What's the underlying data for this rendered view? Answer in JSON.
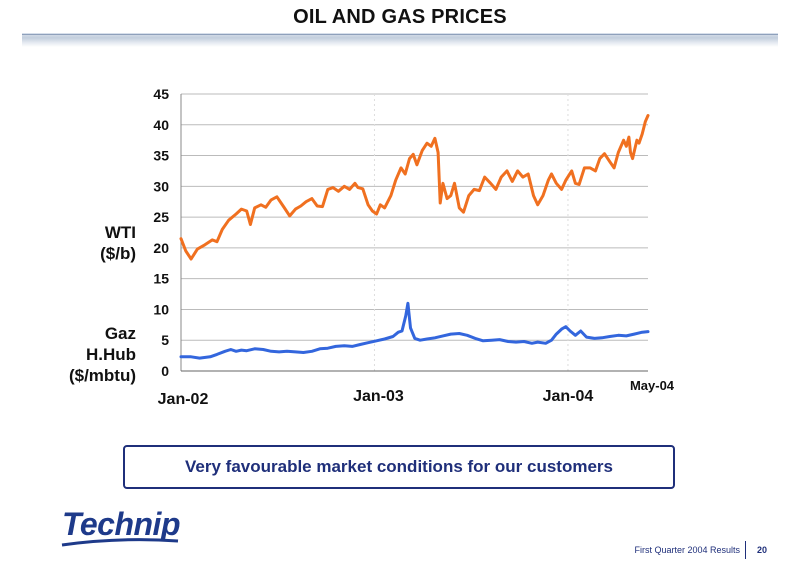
{
  "slide": {
    "title": "OIL AND GAS PRICES",
    "callout": "Very favourable market conditions for our customers",
    "footer": "First Quarter 2004 Results",
    "page_number": "20",
    "logo_text": "Technip"
  },
  "left_labels": {
    "wti_line1": "WTI",
    "wti_line2": "($/b)",
    "gaz_line1": "Gaz",
    "gaz_line2": "H.Hub",
    "gaz_line3": "($/mbtu)"
  },
  "colors": {
    "wti": "#f07020",
    "gas": "#3366dd",
    "grid": "#bbbbbb",
    "accent": "#1f2f7a"
  },
  "chart_data": {
    "type": "line",
    "title": "OIL AND GAS PRICES",
    "xlabel": "",
    "ylabel": "",
    "ylim": [
      0,
      45
    ],
    "yticks": [
      0,
      5,
      10,
      15,
      20,
      25,
      30,
      35,
      40,
      45
    ],
    "xlim": [
      "2002-01",
      "2004-05"
    ],
    "xtick_labels": [
      "Jan-02",
      "Jan-03",
      "Jan-04",
      "May-04"
    ],
    "grid": true,
    "series": [
      {
        "name": "WTI",
        "points": [
          [
            "2002-01-01",
            21.5
          ],
          [
            "2002-01-10",
            19.5
          ],
          [
            "2002-01-20",
            18.2
          ],
          [
            "2002-02-01",
            19.8
          ],
          [
            "2002-02-15",
            20.5
          ],
          [
            "2002-03-01",
            21.3
          ],
          [
            "2002-03-10",
            21.0
          ],
          [
            "2002-03-20",
            23.0
          ],
          [
            "2002-04-01",
            24.5
          ],
          [
            "2002-04-15",
            25.5
          ],
          [
            "2002-04-25",
            26.3
          ],
          [
            "2002-05-05",
            26.0
          ],
          [
            "2002-05-12",
            23.8
          ],
          [
            "2002-05-20",
            26.5
          ],
          [
            "2002-06-01",
            27.0
          ],
          [
            "2002-06-10",
            26.6
          ],
          [
            "2002-06-20",
            27.8
          ],
          [
            "2002-07-01",
            28.3
          ],
          [
            "2002-07-15",
            26.5
          ],
          [
            "2002-07-25",
            25.2
          ],
          [
            "2002-08-05",
            26.3
          ],
          [
            "2002-08-15",
            26.8
          ],
          [
            "2002-08-25",
            27.5
          ],
          [
            "2002-09-05",
            28.0
          ],
          [
            "2002-09-15",
            26.8
          ],
          [
            "2002-09-25",
            26.7
          ],
          [
            "2002-10-05",
            29.5
          ],
          [
            "2002-10-15",
            29.8
          ],
          [
            "2002-10-25",
            29.2
          ],
          [
            "2002-11-05",
            30.0
          ],
          [
            "2002-11-15",
            29.5
          ],
          [
            "2002-11-25",
            30.5
          ],
          [
            "2002-12-01",
            29.8
          ],
          [
            "2002-12-10",
            29.6
          ],
          [
            "2002-12-20",
            27.0
          ],
          [
            "2002-12-28",
            26.0
          ],
          [
            "2003-01-05",
            25.5
          ],
          [
            "2003-01-12",
            27.0
          ],
          [
            "2003-01-20",
            26.5
          ],
          [
            "2003-02-01",
            28.5
          ],
          [
            "2003-02-10",
            31.0
          ],
          [
            "2003-02-20",
            33.0
          ],
          [
            "2003-02-28",
            32.0
          ],
          [
            "2003-03-08",
            34.5
          ],
          [
            "2003-03-15",
            35.2
          ],
          [
            "2003-03-22",
            33.5
          ],
          [
            "2003-04-01",
            35.8
          ],
          [
            "2003-04-10",
            37.0
          ],
          [
            "2003-04-18",
            36.5
          ],
          [
            "2003-04-25",
            37.8
          ],
          [
            "2003-05-01",
            35.5
          ],
          [
            "2003-05-05",
            27.3
          ],
          [
            "2003-05-10",
            30.5
          ],
          [
            "2003-05-18",
            28.0
          ],
          [
            "2003-05-25",
            28.5
          ],
          [
            "2003-06-01",
            30.5
          ],
          [
            "2003-06-10",
            26.5
          ],
          [
            "2003-06-18",
            25.8
          ],
          [
            "2003-06-28",
            28.5
          ],
          [
            "2003-07-08",
            29.5
          ],
          [
            "2003-07-18",
            29.3
          ],
          [
            "2003-07-28",
            31.5
          ],
          [
            "2003-08-08",
            30.5
          ],
          [
            "2003-08-18",
            29.5
          ],
          [
            "2003-08-28",
            31.5
          ],
          [
            "2003-09-08",
            32.5
          ],
          [
            "2003-09-18",
            30.8
          ],
          [
            "2003-09-28",
            32.5
          ],
          [
            "2003-10-08",
            31.5
          ],
          [
            "2003-10-18",
            32.0
          ],
          [
            "2003-10-28",
            28.5
          ],
          [
            "2003-11-05",
            27.0
          ],
          [
            "2003-11-15",
            28.5
          ],
          [
            "2003-11-25",
            31.0
          ],
          [
            "2003-12-01",
            32.0
          ],
          [
            "2003-12-10",
            30.5
          ],
          [
            "2003-12-20",
            29.5
          ],
          [
            "2003-12-28",
            31.0
          ],
          [
            "2004-01-08",
            32.5
          ],
          [
            "2004-01-15",
            30.5
          ],
          [
            "2004-01-22",
            30.3
          ],
          [
            "2004-02-01",
            33.0
          ],
          [
            "2004-02-12",
            33.0
          ],
          [
            "2004-02-22",
            32.5
          ],
          [
            "2004-03-01",
            34.5
          ],
          [
            "2004-03-10",
            35.3
          ],
          [
            "2004-03-20",
            34.0
          ],
          [
            "2004-03-28",
            33.0
          ],
          [
            "2004-04-05",
            35.5
          ],
          [
            "2004-04-15",
            37.5
          ],
          [
            "2004-04-20",
            36.5
          ],
          [
            "2004-04-25",
            38.0
          ],
          [
            "2004-04-28",
            35.5
          ],
          [
            "2004-05-02",
            34.5
          ],
          [
            "2004-05-06",
            36.0
          ],
          [
            "2004-05-10",
            37.5
          ],
          [
            "2004-05-14",
            37.0
          ],
          [
            "2004-05-20",
            38.5
          ],
          [
            "2004-05-26",
            40.5
          ],
          [
            "2004-05-31",
            41.5
          ]
        ]
      },
      {
        "name": "Gaz H.Hub",
        "points": [
          [
            "2002-01-01",
            2.3
          ],
          [
            "2002-01-20",
            2.3
          ],
          [
            "2002-02-05",
            2.1
          ],
          [
            "2002-02-25",
            2.3
          ],
          [
            "2002-03-10",
            2.7
          ],
          [
            "2002-03-25",
            3.2
          ],
          [
            "2002-04-05",
            3.5
          ],
          [
            "2002-04-15",
            3.2
          ],
          [
            "2002-04-25",
            3.4
          ],
          [
            "2002-05-05",
            3.3
          ],
          [
            "2002-05-20",
            3.6
          ],
          [
            "2002-06-05",
            3.5
          ],
          [
            "2002-06-20",
            3.2
          ],
          [
            "2002-07-05",
            3.1
          ],
          [
            "2002-07-20",
            3.2
          ],
          [
            "2002-08-05",
            3.1
          ],
          [
            "2002-08-20",
            3.0
          ],
          [
            "2002-09-05",
            3.2
          ],
          [
            "2002-09-20",
            3.6
          ],
          [
            "2002-10-05",
            3.7
          ],
          [
            "2002-10-20",
            4.0
          ],
          [
            "2002-11-05",
            4.1
          ],
          [
            "2002-11-20",
            4.0
          ],
          [
            "2002-12-05",
            4.3
          ],
          [
            "2002-12-20",
            4.6
          ],
          [
            "2003-01-05",
            4.9
          ],
          [
            "2003-01-20",
            5.2
          ],
          [
            "2003-02-05",
            5.6
          ],
          [
            "2003-02-15",
            6.3
          ],
          [
            "2003-02-22",
            6.5
          ],
          [
            "2003-03-01",
            9.0
          ],
          [
            "2003-03-05",
            11.0
          ],
          [
            "2003-03-10",
            7.0
          ],
          [
            "2003-03-18",
            5.3
          ],
          [
            "2003-03-28",
            5.0
          ],
          [
            "2003-04-10",
            5.2
          ],
          [
            "2003-04-25",
            5.4
          ],
          [
            "2003-05-10",
            5.7
          ],
          [
            "2003-05-25",
            6.0
          ],
          [
            "2003-06-10",
            6.1
          ],
          [
            "2003-06-25",
            5.8
          ],
          [
            "2003-07-10",
            5.3
          ],
          [
            "2003-07-25",
            4.9
          ],
          [
            "2003-08-10",
            5.0
          ],
          [
            "2003-08-25",
            5.1
          ],
          [
            "2003-09-10",
            4.8
          ],
          [
            "2003-09-25",
            4.7
          ],
          [
            "2003-10-10",
            4.8
          ],
          [
            "2003-10-25",
            4.5
          ],
          [
            "2003-11-05",
            4.7
          ],
          [
            "2003-11-20",
            4.5
          ],
          [
            "2003-12-01",
            5.0
          ],
          [
            "2003-12-10",
            6.0
          ],
          [
            "2003-12-20",
            6.8
          ],
          [
            "2003-12-28",
            7.2
          ],
          [
            "2004-01-05",
            6.5
          ],
          [
            "2004-01-15",
            5.8
          ],
          [
            "2004-01-25",
            6.5
          ],
          [
            "2004-02-05",
            5.5
          ],
          [
            "2004-02-20",
            5.3
          ],
          [
            "2004-03-05",
            5.4
          ],
          [
            "2004-03-20",
            5.6
          ],
          [
            "2004-04-05",
            5.8
          ],
          [
            "2004-04-20",
            5.7
          ],
          [
            "2004-05-05",
            6.0
          ],
          [
            "2004-05-20",
            6.3
          ],
          [
            "2004-05-31",
            6.4
          ]
        ]
      }
    ]
  }
}
